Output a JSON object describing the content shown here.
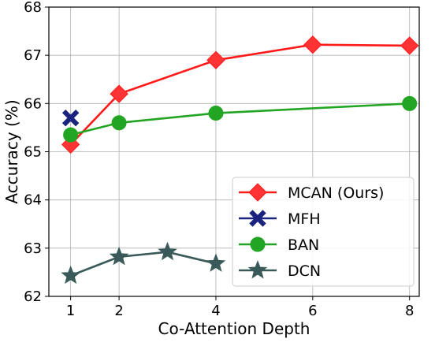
{
  "chart_data": {
    "type": "line",
    "title": "",
    "xlabel": "Co-Attention Depth",
    "ylabel": "Accuracy (%)",
    "x_ticks": [
      1,
      2,
      4,
      6,
      8
    ],
    "y_ticks": [
      62,
      63,
      64,
      65,
      66,
      67,
      68
    ],
    "xlim": [
      0.55,
      8.2
    ],
    "ylim": [
      62,
      68
    ],
    "grid": true,
    "legend_position": "lower-right",
    "series": [
      {
        "name": "MCAN (Ours)",
        "marker": "diamond",
        "color": "#ff1a1a",
        "markerFill": "#ff3333",
        "x": [
          1,
          2,
          4,
          6,
          8
        ],
        "y": [
          65.15,
          66.2,
          66.9,
          67.22,
          67.2
        ]
      },
      {
        "name": "MFH",
        "marker": "x",
        "color": "#1a237e",
        "markerFill": "#1a237e",
        "x": [
          1
        ],
        "y": [
          65.7
        ]
      },
      {
        "name": "BAN",
        "marker": "circle",
        "color": "#22a522",
        "markerFill": "#22a522",
        "x": [
          1,
          2,
          4,
          8
        ],
        "y": [
          65.35,
          65.6,
          65.8,
          66.0
        ]
      },
      {
        "name": "DCN",
        "marker": "star",
        "color": "#3a5a5a",
        "markerFill": "#3a5a5a",
        "x": [
          1,
          2,
          3,
          4
        ],
        "y": [
          62.43,
          62.82,
          62.92,
          62.68
        ]
      }
    ]
  }
}
